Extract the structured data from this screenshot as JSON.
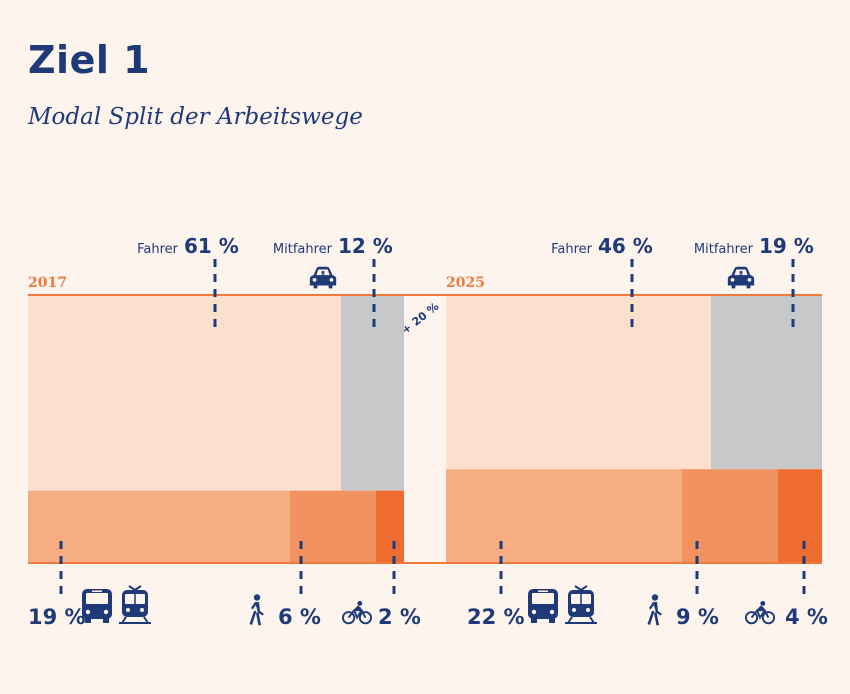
{
  "title": "Ziel 1",
  "subtitle": "Modal Split der Arbeitswege",
  "colors": {
    "background": "#fdf4ee",
    "fahrer": "#fbe1cd",
    "mitfahrer": "#c6c8ca",
    "oepnv": "#f7ad82",
    "fuss": "#f29260",
    "rad": "#ee6c30",
    "line": "#f07a3c",
    "text": "#1f3a78"
  },
  "icons": [
    "car-icon",
    "bus-icon",
    "tram-icon",
    "pedestrian-icon",
    "bicycle-icon"
  ],
  "chart_data": {
    "type": "area",
    "change_label": "+ 20 %",
    "panels": [
      {
        "year": "2017",
        "segments": [
          {
            "key": "fahrer",
            "name": "Fahrer",
            "value": 61,
            "label": "61 %"
          },
          {
            "key": "mitfahrer",
            "name": "Mitfahrer",
            "value": 12,
            "label": "12 %"
          },
          {
            "key": "oepnv",
            "name": "",
            "value": 19,
            "label": "19 %"
          },
          {
            "key": "fuss",
            "name": "",
            "value": 6,
            "label": "6 %"
          },
          {
            "key": "rad",
            "name": "",
            "value": 2,
            "label": "2 %"
          }
        ]
      },
      {
        "year": "2025",
        "segments": [
          {
            "key": "fahrer",
            "name": "Fahrer",
            "value": 46,
            "label": "46 %"
          },
          {
            "key": "mitfahrer",
            "name": "Mitfahrer",
            "value": 19,
            "label": "19 %"
          },
          {
            "key": "oepnv",
            "name": "",
            "value": 22,
            "label": "22 %"
          },
          {
            "key": "fuss",
            "name": "",
            "value": 9,
            "label": "9 %"
          },
          {
            "key": "rad",
            "name": "",
            "value": 4,
            "label": "4 %"
          }
        ]
      }
    ]
  }
}
